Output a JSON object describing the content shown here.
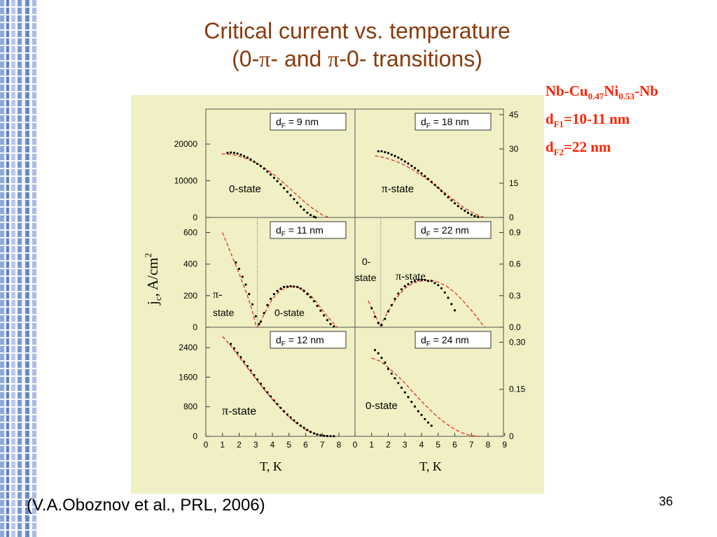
{
  "slide": {
    "title_line1": "Critical current vs. temperature",
    "title_line2_pre": "(0-",
    "title_pi": "π",
    "title_line2_mid": "- and ",
    "title_line2_post": "-0- transitions)",
    "info_line1": {
      "a": "Nb-Cu",
      "s1": "0.47",
      "b": "Ni",
      "s2": "0.53",
      "c": "-Nb"
    },
    "info_line2": {
      "a": "d",
      "s": "F1",
      "b": "=10-11 nm"
    },
    "info_line3": {
      "a": "d",
      "s": "F2",
      "b": "=22 nm"
    },
    "citation": "(V.A.Oboznov et al., PRL, 2006)",
    "page_number": "36"
  },
  "colors": {
    "title": "#8b3a0c",
    "info": "#ff2200",
    "figure_bg": "#f0f0c4",
    "fit_line": "#e02020",
    "data_points": "#000000"
  },
  "chart_data": {
    "type": "scatter",
    "xlabel": "T, K",
    "ylabel": "j_c, A/cm^2",
    "ylabel_parts": {
      "j": "j",
      "c": "c",
      "rest": ", A/cm",
      "sup": "2"
    },
    "xlim": [
      0,
      9
    ],
    "x_ticks": [
      "0",
      "1",
      "2",
      "3",
      "4",
      "5",
      "6",
      "7",
      "8",
      "9"
    ],
    "panels": [
      {
        "id": "df9",
        "col": 0,
        "row": 0,
        "box": "d_F = 9 nm",
        "box_d": "d",
        "box_sub": "F",
        "box_rest": " = 9 nm",
        "label": "0-state",
        "ylim": [
          0,
          28000
        ],
        "y_ticks": [
          0,
          10000,
          20000
        ],
        "y_tick_labels": [
          "0",
          "10000",
          "20000"
        ],
        "fit": [
          [
            0.95,
            17300
          ],
          [
            1.5,
            17200
          ],
          [
            2,
            16700
          ],
          [
            2.5,
            15900
          ],
          [
            3,
            14900
          ],
          [
            3.5,
            13600
          ],
          [
            4,
            12000
          ],
          [
            4.5,
            10100
          ],
          [
            5,
            8100
          ],
          [
            5.5,
            6000
          ],
          [
            6,
            4000
          ],
          [
            6.5,
            2200
          ],
          [
            7,
            700
          ],
          [
            7.4,
            0
          ]
        ],
        "points": [
          [
            1.3,
            17600
          ],
          [
            1.5,
            17700
          ],
          [
            1.7,
            17600
          ],
          [
            1.9,
            17400
          ],
          [
            2.1,
            17100
          ],
          [
            2.3,
            16700
          ],
          [
            2.5,
            16300
          ],
          [
            2.7,
            15800
          ],
          [
            2.9,
            15200
          ],
          [
            3.1,
            14600
          ],
          [
            3.3,
            14000
          ],
          [
            3.5,
            13300
          ],
          [
            3.7,
            12500
          ],
          [
            3.9,
            11700
          ],
          [
            4.1,
            10800
          ],
          [
            4.3,
            9900
          ],
          [
            4.5,
            9000
          ],
          [
            4.7,
            8000
          ],
          [
            4.9,
            7000
          ],
          [
            5.1,
            6000
          ],
          [
            5.3,
            5000
          ],
          [
            5.5,
            4000
          ],
          [
            5.7,
            3000
          ],
          [
            5.9,
            2100
          ],
          [
            6.1,
            1300
          ],
          [
            6.3,
            650
          ],
          [
            6.5,
            200
          ],
          [
            6.6,
            0
          ]
        ]
      },
      {
        "id": "df18",
        "col": 1,
        "row": 0,
        "box": "d_F = 18 nm",
        "box_d": "d",
        "box_sub": "F",
        "box_rest": " = 18 nm",
        "label": "π-state",
        "label_pi": "π",
        "label_rest": "-state",
        "ylim": [
          0,
          45
        ],
        "right_ticks": [
          0,
          15,
          30,
          45
        ],
        "right_tick_labels": [
          "0",
          "15",
          "30",
          "45"
        ],
        "fit": [
          [
            1.2,
            27
          ],
          [
            1.8,
            26.2
          ],
          [
            2.5,
            24.5
          ],
          [
            3,
            22.8
          ],
          [
            3.5,
            20.8
          ],
          [
            4,
            18.4
          ],
          [
            4.5,
            15.8
          ],
          [
            5,
            13
          ],
          [
            5.5,
            10.2
          ],
          [
            6,
            7.4
          ],
          [
            6.5,
            4.6
          ],
          [
            7,
            2.3
          ],
          [
            7.5,
            0.6
          ],
          [
            7.8,
            0
          ]
        ],
        "points": [
          [
            1.4,
            29
          ],
          [
            1.6,
            29
          ],
          [
            1.8,
            28.6
          ],
          [
            2,
            28.2
          ],
          [
            2.2,
            27.5
          ],
          [
            2.4,
            26.9
          ],
          [
            2.6,
            26.2
          ],
          [
            2.8,
            25.4
          ],
          [
            3,
            24.5
          ],
          [
            3.2,
            23.6
          ],
          [
            3.4,
            22.6
          ],
          [
            3.6,
            21.6
          ],
          [
            3.8,
            20.5
          ],
          [
            4,
            19.3
          ],
          [
            4.2,
            18.1
          ],
          [
            4.4,
            16.9
          ],
          [
            4.6,
            15.6
          ],
          [
            4.8,
            14.3
          ],
          [
            5,
            13
          ],
          [
            5.2,
            11.6
          ],
          [
            5.4,
            10.2
          ],
          [
            5.6,
            8.8
          ],
          [
            5.8,
            7.5
          ],
          [
            6,
            6.2
          ],
          [
            6.2,
            5
          ],
          [
            6.4,
            3.9
          ],
          [
            6.6,
            2.9
          ],
          [
            6.8,
            2
          ],
          [
            7,
            1.2
          ],
          [
            7.2,
            0.6
          ],
          [
            7.4,
            0.2
          ]
        ]
      },
      {
        "id": "df11",
        "col": 0,
        "row": 1,
        "box": "d_F = 11 nm",
        "box_d": "d",
        "box_sub": "F",
        "box_rest": " = 11 nm",
        "labels": [
          "π-",
          "state",
          "0-state"
        ],
        "label_pi": "π",
        "ylim": [
          0,
          660
        ],
        "y_ticks": [
          0,
          200,
          400,
          600
        ],
        "y_tick_labels": [
          "0",
          "200",
          "400",
          "600"
        ],
        "dotted_x": 3.1,
        "fit": [
          [
            1,
            600
          ],
          [
            1.5,
            470
          ],
          [
            2,
            340
          ],
          [
            2.5,
            200
          ],
          [
            2.8,
            100
          ],
          [
            3,
            15
          ],
          [
            3.1,
            0
          ],
          [
            3.5,
            80
          ],
          [
            4,
            180
          ],
          [
            4.5,
            235
          ],
          [
            5,
            255
          ],
          [
            5.5,
            255
          ],
          [
            6,
            230
          ],
          [
            6.5,
            180
          ],
          [
            7,
            110
          ],
          [
            7.5,
            45
          ],
          [
            7.9,
            0
          ]
        ],
        "points": [
          [
            1.8,
            410
          ],
          [
            2,
            370
          ],
          [
            2.2,
            320
          ],
          [
            2.4,
            270
          ],
          [
            2.6,
            210
          ],
          [
            2.8,
            145
          ],
          [
            3,
            70
          ],
          [
            3.2,
            20
          ],
          [
            3.3,
            35
          ],
          [
            3.5,
            90
          ],
          [
            3.7,
            140
          ],
          [
            3.9,
            180
          ],
          [
            4.1,
            210
          ],
          [
            4.3,
            230
          ],
          [
            4.5,
            245
          ],
          [
            4.7,
            255
          ],
          [
            4.9,
            258
          ],
          [
            5.1,
            260
          ],
          [
            5.3,
            258
          ],
          [
            5.5,
            255
          ],
          [
            5.7,
            245
          ],
          [
            5.9,
            230
          ],
          [
            6.1,
            210
          ],
          [
            6.3,
            190
          ],
          [
            6.5,
            165
          ],
          [
            6.7,
            135
          ],
          [
            6.9,
            105
          ],
          [
            7.1,
            75
          ],
          [
            7.3,
            45
          ],
          [
            7.5,
            20
          ],
          [
            7.7,
            5
          ]
        ]
      },
      {
        "id": "df22",
        "col": 1,
        "row": 1,
        "box": "d_F = 22 nm",
        "box_d": "d",
        "box_sub": "F",
        "box_rest": " = 22 nm",
        "labels": [
          "0-",
          "state",
          "π-state"
        ],
        "label_pi": "π",
        "ylim": [
          0,
          0.99
        ],
        "right_ticks": [
          0,
          0.3,
          0.6,
          0.9
        ],
        "right_tick_labels": [
          "0.0",
          "0.3",
          "0.6",
          "0.9"
        ],
        "dotted_x": 1.55,
        "fit": [
          [
            0.8,
            0.25
          ],
          [
            1.2,
            0.12
          ],
          [
            1.5,
            0.01
          ],
          [
            2,
            0.15
          ],
          [
            2.5,
            0.28
          ],
          [
            3,
            0.37
          ],
          [
            3.5,
            0.42
          ],
          [
            4,
            0.44
          ],
          [
            4.5,
            0.45
          ],
          [
            5,
            0.43
          ],
          [
            5.5,
            0.39
          ],
          [
            6,
            0.33
          ],
          [
            6.5,
            0.25
          ],
          [
            7,
            0.16
          ],
          [
            7.5,
            0.06
          ],
          [
            7.8,
            0
          ]
        ],
        "points": [
          [
            1,
            0.18
          ],
          [
            1.2,
            0.1
          ],
          [
            1.4,
            0.04
          ],
          [
            1.6,
            0.02
          ],
          [
            1.8,
            0.08
          ],
          [
            2,
            0.15
          ],
          [
            2.2,
            0.21
          ],
          [
            2.4,
            0.27
          ],
          [
            2.6,
            0.32
          ],
          [
            2.8,
            0.36
          ],
          [
            3,
            0.39
          ],
          [
            3.2,
            0.41
          ],
          [
            3.4,
            0.43
          ],
          [
            3.6,
            0.44
          ],
          [
            3.8,
            0.45
          ],
          [
            4,
            0.45
          ],
          [
            4.2,
            0.45
          ],
          [
            4.4,
            0.44
          ],
          [
            4.6,
            0.44
          ],
          [
            4.8,
            0.42
          ],
          [
            5,
            0.4
          ],
          [
            5.2,
            0.37
          ],
          [
            5.4,
            0.33
          ],
          [
            5.6,
            0.28
          ],
          [
            5.8,
            0.22
          ],
          [
            6,
            0.16
          ]
        ]
      },
      {
        "id": "df12",
        "col": 0,
        "row": 2,
        "box": "d_F = 12 nm",
        "box_d": "d",
        "box_sub": "F",
        "box_rest": " = 12 nm",
        "label": "π-state",
        "label_pi": "π",
        "label_rest": "-state",
        "ylim": [
          0,
          2800
        ],
        "y_ticks": [
          0,
          800,
          1600,
          2400
        ],
        "y_tick_labels": [
          "0",
          "800",
          "1600",
          "2400"
        ],
        "fit": [
          [
            1,
            2700
          ],
          [
            1.5,
            2450
          ],
          [
            2,
            2150
          ],
          [
            2.5,
            1850
          ],
          [
            3,
            1560
          ],
          [
            3.5,
            1270
          ],
          [
            4,
            1000
          ],
          [
            4.5,
            750
          ],
          [
            5,
            520
          ],
          [
            5.5,
            330
          ],
          [
            6,
            180
          ],
          [
            6.5,
            80
          ],
          [
            7,
            20
          ],
          [
            7.5,
            0
          ]
        ],
        "points": [
          [
            1.5,
            2500
          ],
          [
            1.7,
            2380
          ],
          [
            1.9,
            2260
          ],
          [
            2.1,
            2140
          ],
          [
            2.3,
            2020
          ],
          [
            2.5,
            1900
          ],
          [
            2.7,
            1780
          ],
          [
            2.9,
            1660
          ],
          [
            3.1,
            1540
          ],
          [
            3.3,
            1420
          ],
          [
            3.5,
            1300
          ],
          [
            3.7,
            1190
          ],
          [
            3.9,
            1080
          ],
          [
            4.1,
            970
          ],
          [
            4.3,
            870
          ],
          [
            4.5,
            770
          ],
          [
            4.7,
            680
          ],
          [
            4.9,
            590
          ],
          [
            5.1,
            510
          ],
          [
            5.3,
            430
          ],
          [
            5.5,
            360
          ],
          [
            5.7,
            290
          ],
          [
            5.9,
            230
          ],
          [
            6.1,
            170
          ],
          [
            6.3,
            120
          ],
          [
            6.5,
            80
          ],
          [
            6.7,
            50
          ],
          [
            6.9,
            30
          ],
          [
            7.1,
            15
          ],
          [
            7.3,
            8
          ],
          [
            7.5,
            3
          ],
          [
            7.7,
            1
          ]
        ]
      },
      {
        "id": "df24",
        "col": 1,
        "row": 2,
        "box": "d_F = 24 nm",
        "box_d": "d",
        "box_sub": "F",
        "box_rest": " = 24 nm",
        "label": "0-state",
        "ylim": [
          0,
          0.33
        ],
        "right_ticks": [
          0,
          0.15,
          0.3
        ],
        "right_tick_labels": [
          "0",
          "0.15",
          "0.30"
        ],
        "fit": [
          [
            1,
            0.25
          ],
          [
            1.5,
            0.24
          ],
          [
            2,
            0.22
          ],
          [
            2.5,
            0.195
          ],
          [
            3,
            0.17
          ],
          [
            3.5,
            0.14
          ],
          [
            4,
            0.112
          ],
          [
            4.5,
            0.085
          ],
          [
            5,
            0.06
          ],
          [
            5.5,
            0.04
          ],
          [
            6,
            0.022
          ],
          [
            6.5,
            0.01
          ],
          [
            7,
            0.002
          ],
          [
            7.5,
            0
          ]
        ],
        "points": [
          [
            1.2,
            0.275
          ],
          [
            1.4,
            0.265
          ],
          [
            1.6,
            0.25
          ],
          [
            1.8,
            0.235
          ],
          [
            2,
            0.215
          ],
          [
            2.2,
            0.2
          ],
          [
            2.4,
            0.185
          ],
          [
            2.6,
            0.17
          ],
          [
            2.8,
            0.155
          ],
          [
            3,
            0.14
          ],
          [
            3.2,
            0.125
          ],
          [
            3.4,
            0.11
          ],
          [
            3.6,
            0.095
          ],
          [
            3.8,
            0.08
          ],
          [
            4,
            0.068
          ],
          [
            4.2,
            0.055
          ],
          [
            4.4,
            0.044
          ],
          [
            4.6,
            0.034
          ]
        ]
      }
    ]
  }
}
